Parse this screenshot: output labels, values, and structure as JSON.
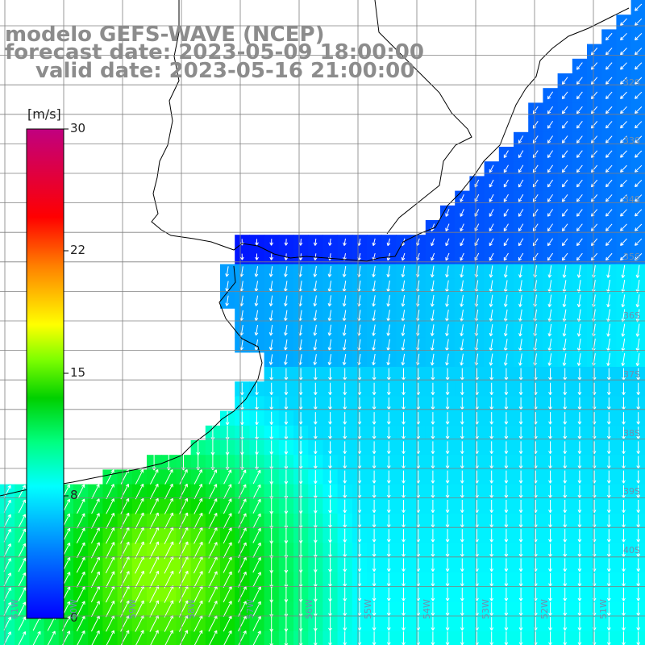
{
  "titles": {
    "model": "modelo GEFS-WAVE (NCEP)",
    "forecast": "forecast date: 2023-05-09 18:00:00",
    "valid": "valid date: 2023-05-16 21:00:00"
  },
  "colorbar": {
    "unit": "[m/s]",
    "min": 0,
    "max": 30,
    "ticks": [
      {
        "value": 30,
        "label": "30"
      },
      {
        "value": 22,
        "label": "22"
      },
      {
        "value": 15,
        "label": "15"
      },
      {
        "value": 8,
        "label": "8"
      },
      {
        "value": 0,
        "label": "0"
      }
    ],
    "colors": [
      "#0000ff",
      "#0080ff",
      "#00ffff",
      "#00ff80",
      "#00d000",
      "#80ff00",
      "#ffff00",
      "#ff8000",
      "#ff0000",
      "#c00080"
    ]
  },
  "map": {
    "lat_labels": [
      "32S",
      "33S",
      "34S",
      "35S",
      "36S",
      "37S",
      "38S",
      "39S",
      "40S"
    ],
    "lon_labels": [
      "61W",
      "60W",
      "59W",
      "58W",
      "57W",
      "56W",
      "55W",
      "54W",
      "53W",
      "52W",
      "51W"
    ],
    "land_color": "#ffffff",
    "grid_color": "#808080",
    "arrow_color": "#ffffff"
  }
}
